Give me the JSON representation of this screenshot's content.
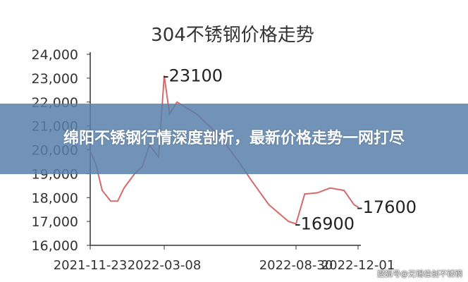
{
  "chart_data": {
    "type": "line",
    "title": "304不锈钢价格走势",
    "xlabel": "",
    "ylabel": "",
    "ylim": [
      16000,
      24000
    ],
    "y_ticks": [
      "16,000",
      "17,000",
      "18,000",
      "19,000",
      "20,000",
      "21,000",
      "22,000",
      "23,000",
      "24,000"
    ],
    "x_ticks": [
      "2021-11-23",
      "2022-03-08",
      "2022-08-30",
      "2022-12-01"
    ],
    "grid": false,
    "line_color": "#d46a6a",
    "annotations": [
      {
        "date": "2022-03-08",
        "value": 23100,
        "label": "-23100"
      },
      {
        "date": "2022-08-30",
        "value": 16900,
        "label": "-16900"
      },
      {
        "date": "2022-12-01",
        "value": 17600,
        "label": "-17600"
      }
    ],
    "series": [
      {
        "points": [
          [
            "2021-11-23",
            19950
          ],
          [
            "2021-12-01",
            19400
          ],
          [
            "2021-12-10",
            18300
          ],
          [
            "2021-12-22",
            17850
          ],
          [
            "2022-01-01",
            17850
          ],
          [
            "2022-01-10",
            18400
          ],
          [
            "2022-01-25",
            19000
          ],
          [
            "2022-02-05",
            19300
          ],
          [
            "2022-02-15",
            20200
          ],
          [
            "2022-02-28",
            19700
          ],
          [
            "2022-03-08",
            23100
          ],
          [
            "2022-03-15",
            21500
          ],
          [
            "2022-03-25",
            22000
          ],
          [
            "2022-04-20",
            21500
          ],
          [
            "2022-05-20",
            20600
          ],
          [
            "2022-06-15",
            19500
          ],
          [
            "2022-07-01",
            18750
          ],
          [
            "2022-07-25",
            17700
          ],
          [
            "2022-08-20",
            17000
          ],
          [
            "2022-08-30",
            16900
          ],
          [
            "2022-09-12",
            18150
          ],
          [
            "2022-10-01",
            18200
          ],
          [
            "2022-10-20",
            18400
          ],
          [
            "2022-11-10",
            18300
          ],
          [
            "2022-11-25",
            17700
          ],
          [
            "2022-12-01",
            17600
          ]
        ]
      }
    ]
  },
  "banner": {
    "title": "绵阳不锈钢行情深度剖析，最新价格走势一网打尽"
  },
  "watermark": "搜狐号@无锡佳创不锈钢"
}
